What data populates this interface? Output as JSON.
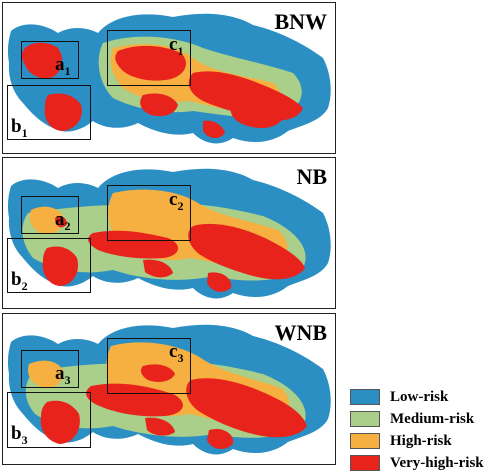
{
  "legend": [
    {
      "label": "Low-risk",
      "color": "#2b8fc4"
    },
    {
      "label": "Medium-risk",
      "color": "#a9cf8a"
    },
    {
      "label": "High-risk",
      "color": "#f5b041"
    },
    {
      "label": "Very-high-risk",
      "color": "#e8231b"
    }
  ],
  "panels": [
    {
      "scenario": "BNW",
      "regions": [
        {
          "letter": "a",
          "sub": "1"
        },
        {
          "letter": "b",
          "sub": "1"
        },
        {
          "letter": "c",
          "sub": "1"
        }
      ]
    },
    {
      "scenario": "NB",
      "regions": [
        {
          "letter": "a",
          "sub": "2"
        },
        {
          "letter": "b",
          "sub": "2"
        },
        {
          "letter": "c",
          "sub": "2"
        }
      ]
    },
    {
      "scenario": "WNB",
      "regions": [
        {
          "letter": "a",
          "sub": "3"
        },
        {
          "letter": "b",
          "sub": "3"
        },
        {
          "letter": "c",
          "sub": "3"
        }
      ]
    }
  ]
}
